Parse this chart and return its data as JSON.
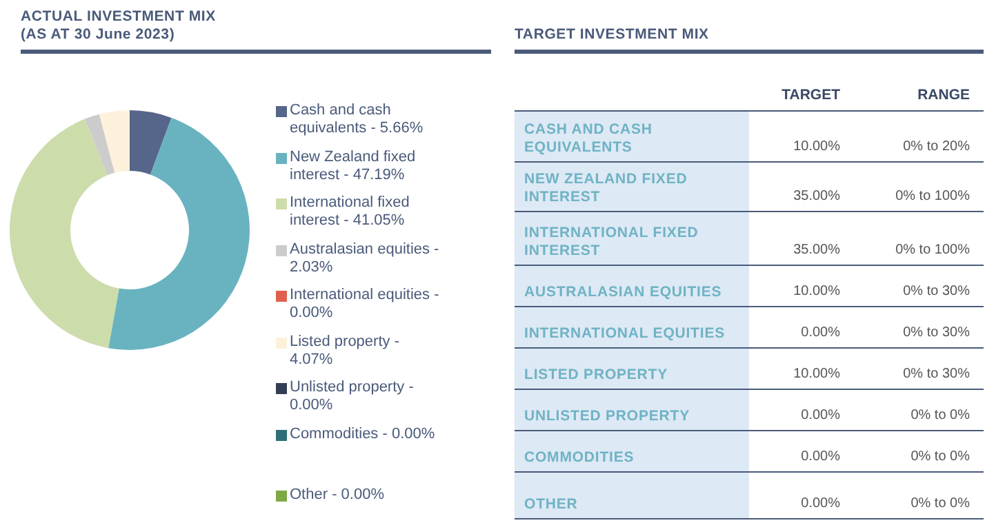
{
  "chart_data": [
    {
      "type": "donut",
      "title": "ACTUAL  INVESTMENT  MIX\n(AS AT 30 June 2023)",
      "legend": "right",
      "categories": [
        "Cash and cash equivalents - 5.66%",
        "New Zealand fixed interest - 47.19%",
        "International fixed interest - 41.05%",
        "Australasian equities - 2.03%",
        "International equities - 0.00%",
        "Listed property - 4.07%",
        "Unlisted property - 0.00%",
        "Commodities - 0.00%",
        "Other - 0.00%"
      ],
      "values": [
        5.66,
        47.19,
        41.05,
        2.03,
        0,
        4.07,
        0,
        0,
        0
      ],
      "colors": [
        "#56658a",
        "#69b3c0",
        "#cddcab",
        "#cccccc",
        "#e0604f",
        "#fdf1dc",
        "#333e55",
        "#2e6f78",
        "#7ea845"
      ]
    },
    {
      "type": "other",
      "title": "TARGET INVESTMENT MIX",
      "categories": [
        "TARGET",
        "RANGE"
      ],
      "y_categories": [
        "CASH AND CASH EQUIVALENTS",
        "NEW ZEALAND FIXED INTEREST",
        "INTERNATIONAL FIXED INTEREST",
        "AUSTRALASIAN EQUITIES",
        "INTERNATIONAL  EQUITIES",
        "LISTED PROPERTY",
        "UNLISTED PROPERTY",
        "COMMODITIES",
        "OTHER"
      ],
      "cell_labels": [
        [
          "10.00%",
          "0% to 20%"
        ],
        [
          "35.00%",
          "0% to 100%"
        ],
        [
          "35.00%",
          "0% to 100%"
        ],
        [
          "10.00%",
          "0% to 30%"
        ],
        [
          "0.00%",
          "0% to 30%"
        ],
        [
          "10.00%",
          "0% to 30%"
        ],
        [
          "0.00%",
          "0% to 0%"
        ],
        [
          "0.00%",
          "0% to 0%"
        ],
        [
          "0.00%",
          "0% to 0%"
        ]
      ]
    }
  ]
}
